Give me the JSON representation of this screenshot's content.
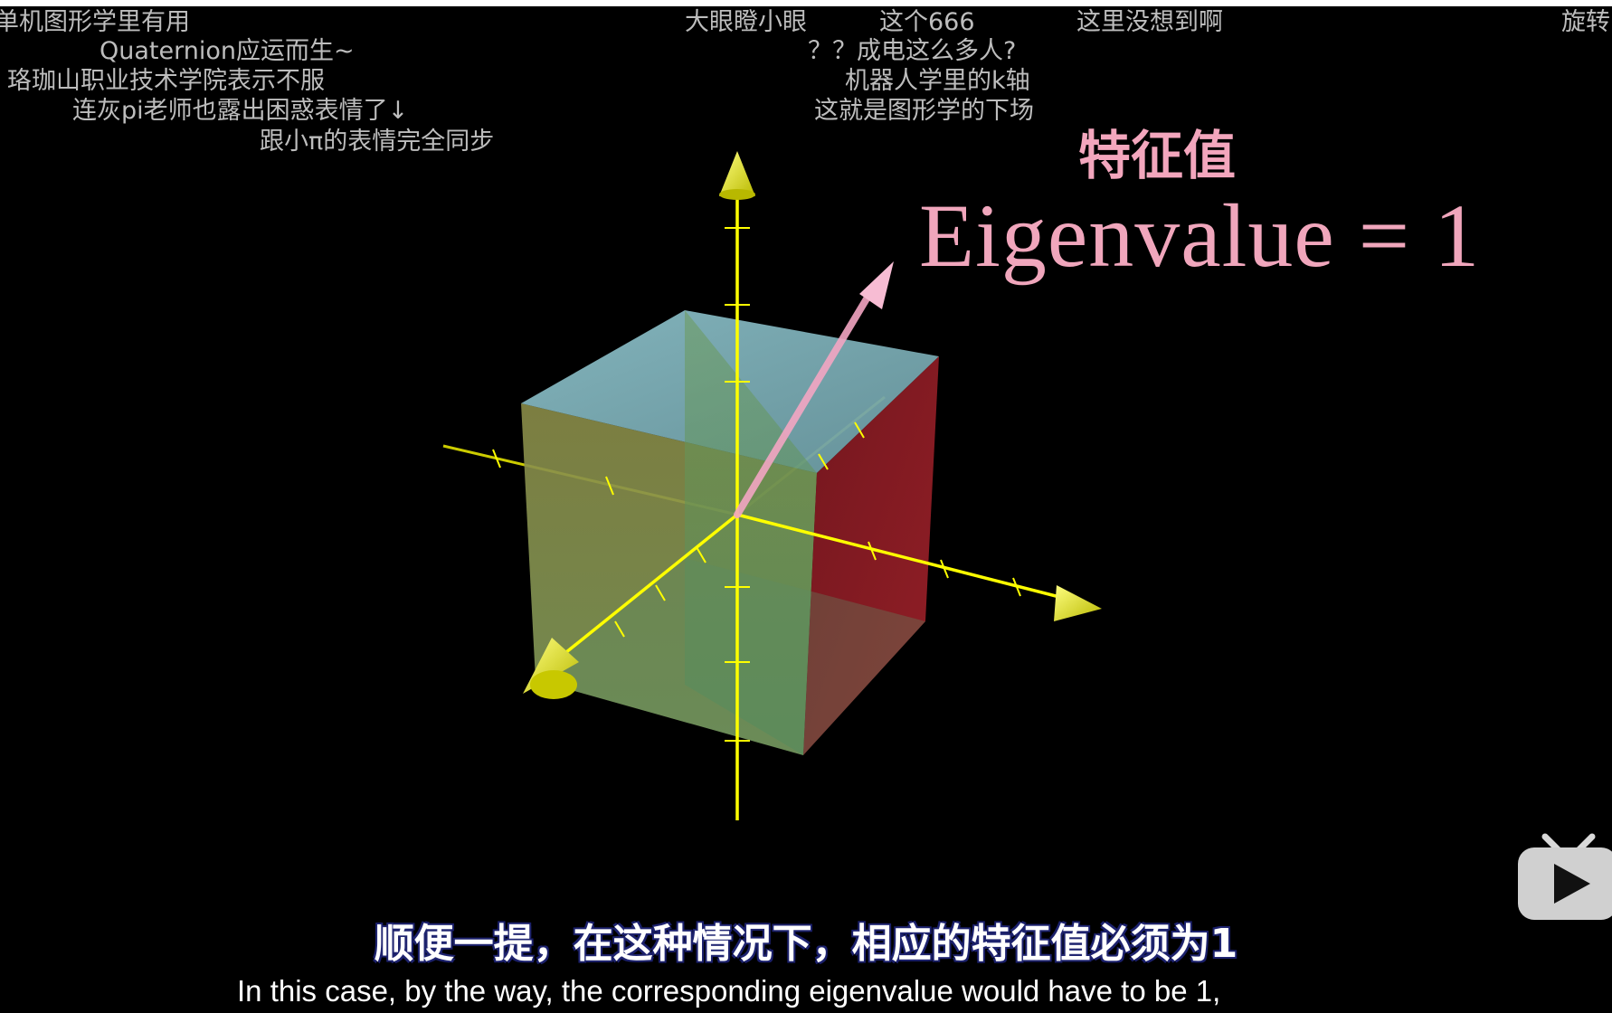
{
  "danmaku": [
    "单机图形学里有用",
    "Quaternion应运而生~",
    "珞珈山职业技术学院表示不服",
    "连灰pi老师也露出困惑表情了↓",
    "跟小π的表情完全同步",
    "大眼瞪小眼",
    "这个666",
    "这里没想到啊",
    "旋转",
    "？？成电这么多人?",
    "机器人学里的k轴",
    "这就是图形学的下场"
  ],
  "overlay": {
    "title_cn": "特征值",
    "title_en": "Eigenvalue = 1"
  },
  "subtitles": {
    "cn": "顺便一提，在这种情况下，相应的特征值必须为1",
    "en": "In this case, by the way, the corresponding eigenvalue would have to be 1,"
  },
  "colors": {
    "axis": "#ffff00",
    "vector": "#f3a6c3",
    "cube_top": "#7ab0b8",
    "cube_front": "#5e8f55",
    "cube_right": "#8a1a22",
    "cube_left": "#8f9a4a"
  },
  "icons": {
    "player_logo": "tv-play-icon"
  }
}
